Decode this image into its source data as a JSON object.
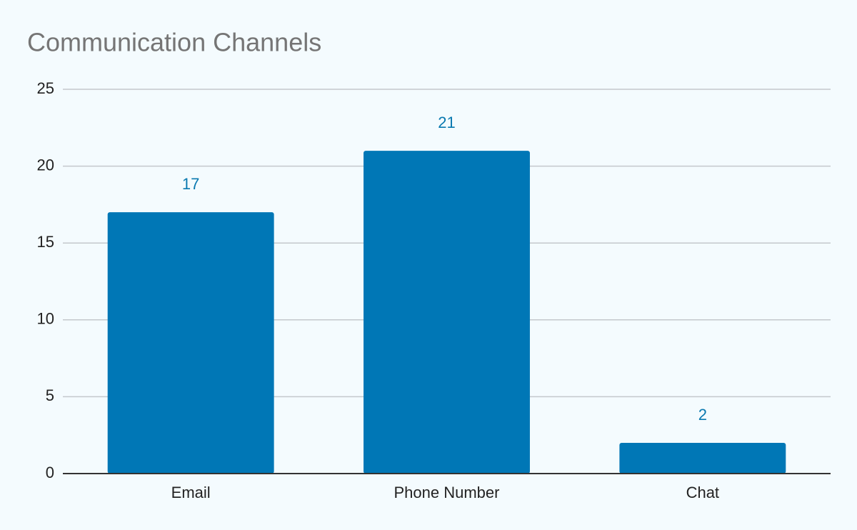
{
  "chart_data": {
    "type": "bar",
    "title": "Communication Channels",
    "categories": [
      "Email",
      "Phone Number",
      "Chat"
    ],
    "values": [
      17,
      21,
      2
    ],
    "color": "#0077b6",
    "ylim": [
      0,
      25
    ],
    "yticks": [
      0,
      5,
      10,
      15,
      20,
      25
    ],
    "grid": true
  }
}
